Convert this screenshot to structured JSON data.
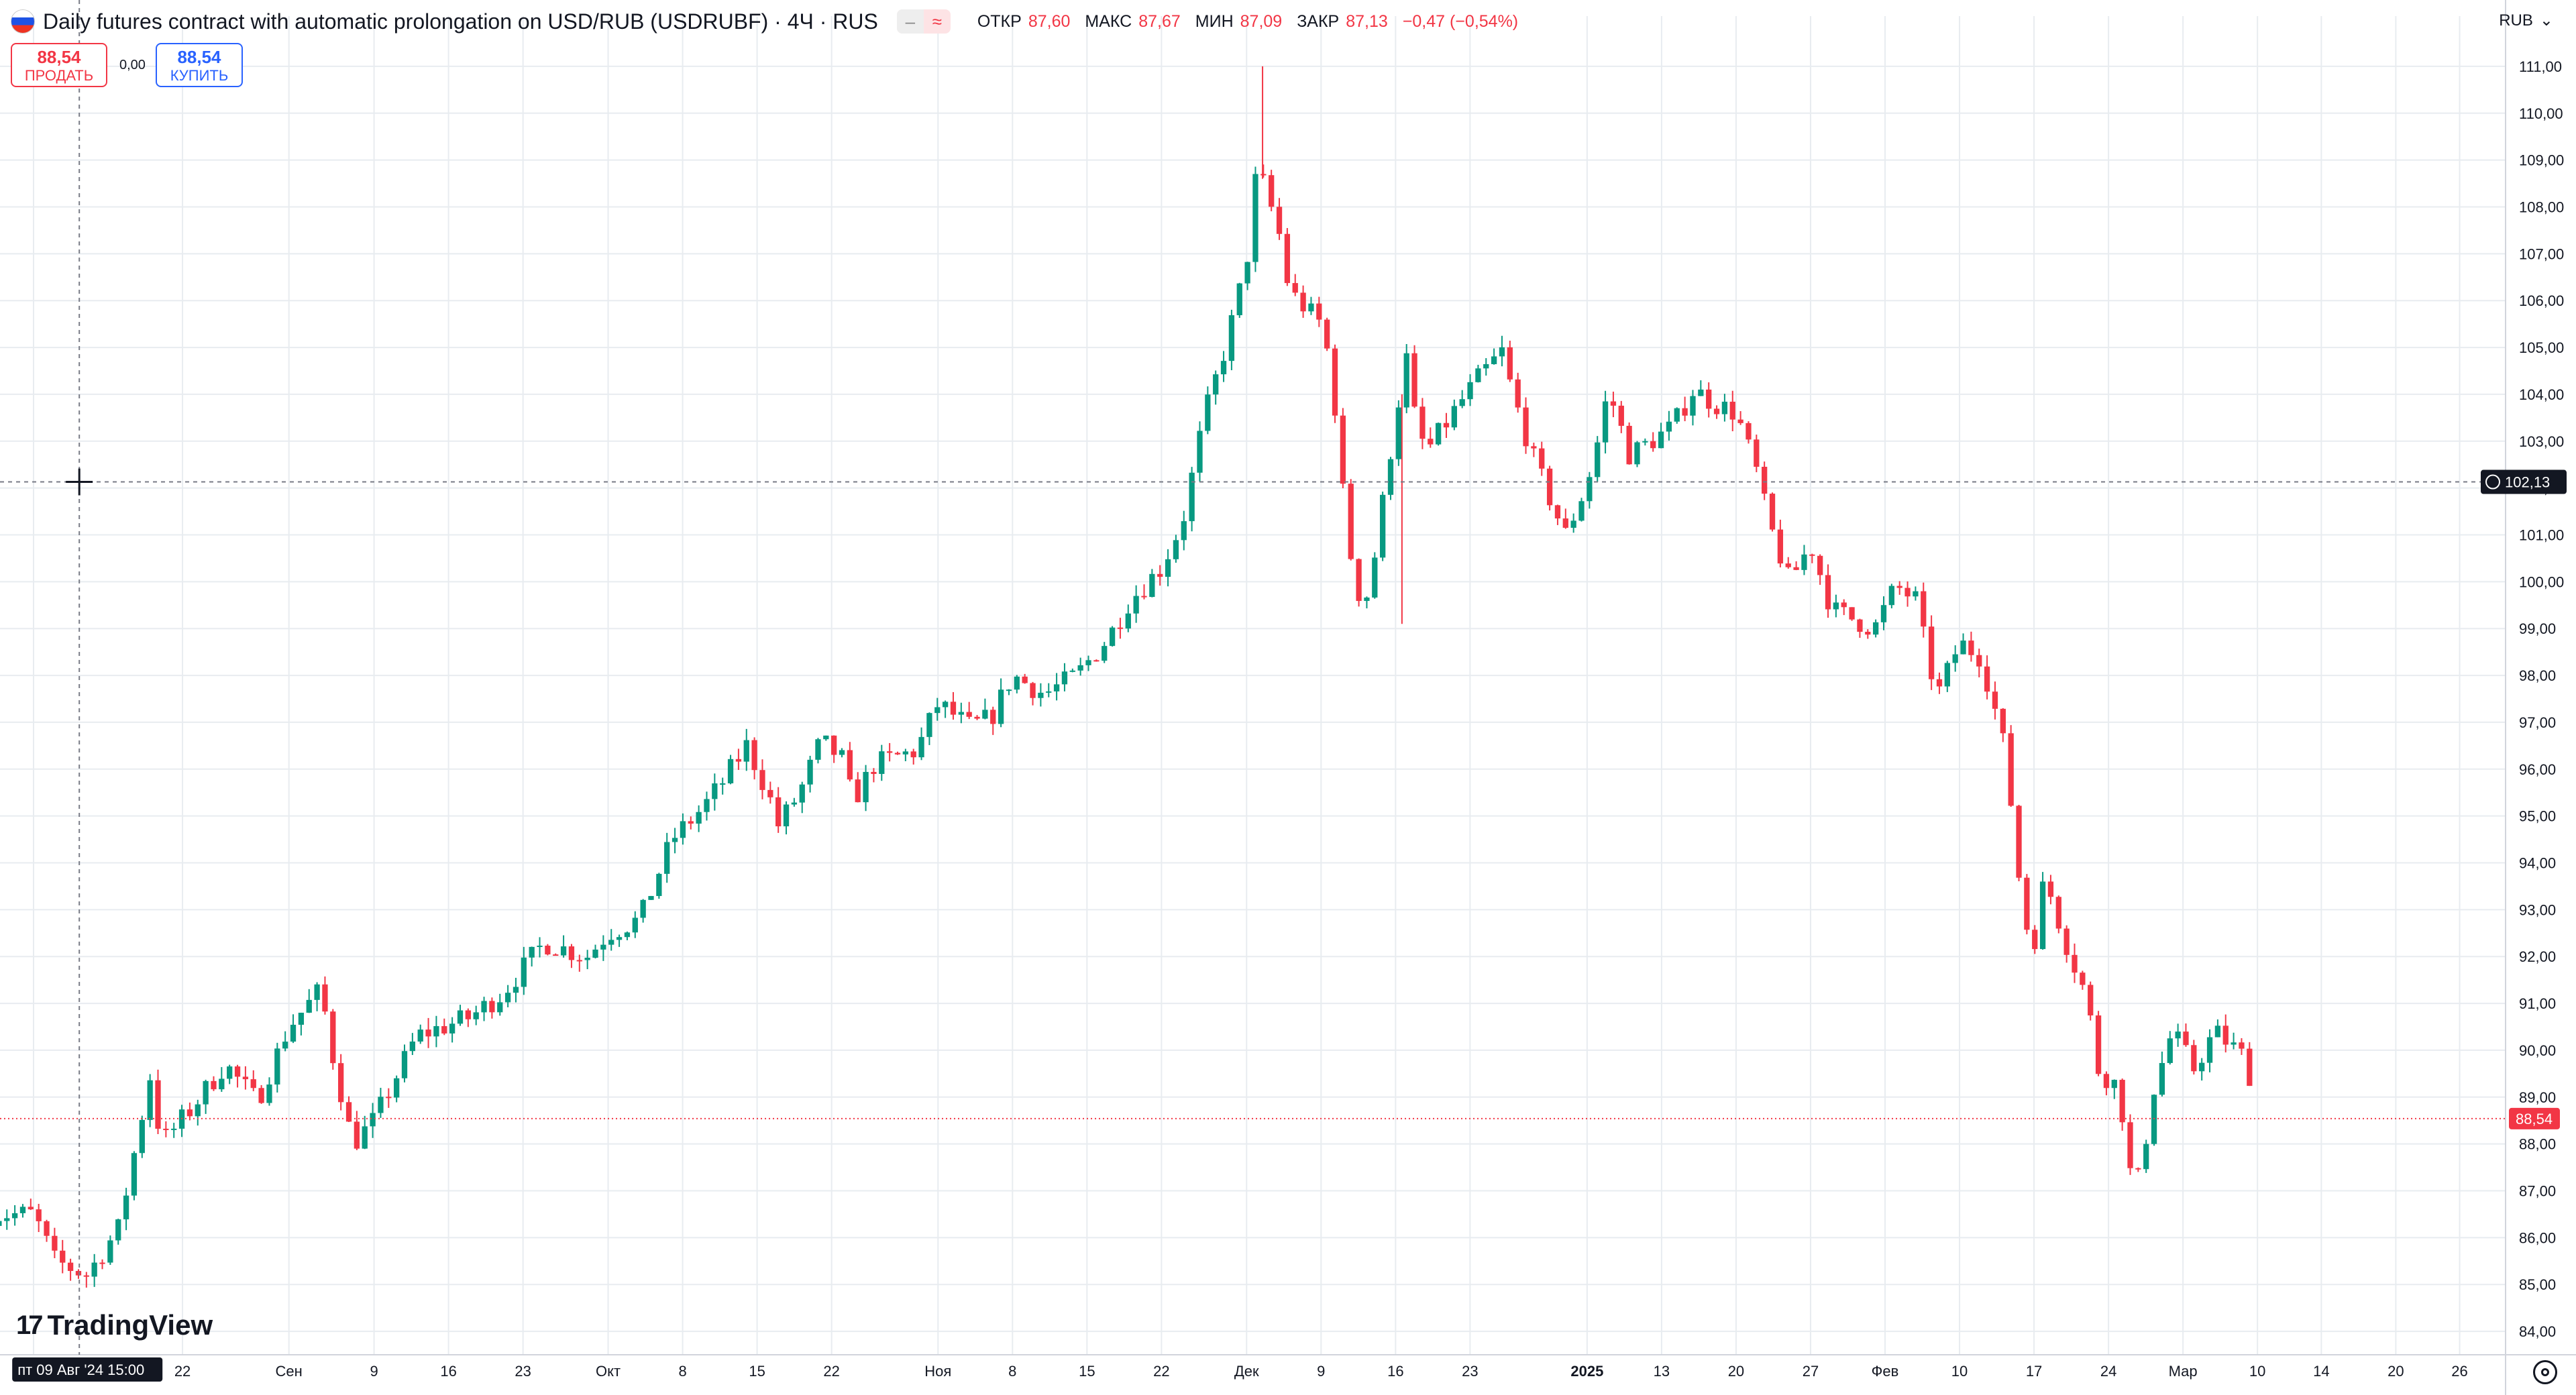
{
  "header": {
    "title": "Daily futures contract with automatic prolongation on USD/RUB (USDRUBF) · 4Ч · RUS",
    "ohlc": [
      {
        "key": "ОТКР",
        "value": "87,60"
      },
      {
        "key": "МАКС",
        "value": "87,67"
      },
      {
        "key": "МИН",
        "value": "87,09"
      },
      {
        "key": "ЗАКР",
        "value": "87,13"
      },
      {
        "key": "",
        "value": "−0,47 (−0,54%)"
      }
    ],
    "toggle_a": "–",
    "toggle_b": "≈"
  },
  "trade": {
    "sell_price": "88,54",
    "sell_label": "ПРОДАТЬ",
    "spread": "0,00",
    "buy_price": "88,54",
    "buy_label": "КУПИТЬ"
  },
  "currency_button": "RUB",
  "crosshair": {
    "price_label": "102,13",
    "time_label": "пт 09 Авг '24   15:00"
  },
  "last_price_label": "88,54",
  "logo": "TradingView",
  "colors": {
    "up": "#089981",
    "down": "#f23645",
    "grid": "#e8ecf0",
    "accent": "#2962ff"
  },
  "chart_data": {
    "type": "candlestick",
    "title": "Daily futures contract with automatic prolongation on USD/RUB (USDRUBF)",
    "timeframe": "4H",
    "price_ticks": [
      "84,00",
      "85,00",
      "86,00",
      "87,00",
      "88,00",
      "89,00",
      "90,00",
      "91,00",
      "92,00",
      "93,00",
      "94,00",
      "95,00",
      "96,00",
      "97,00",
      "98,00",
      "99,00",
      "100,00",
      "101,00",
      "102,00",
      "103,00",
      "104,00",
      "105,00",
      "106,00",
      "107,00",
      "108,00",
      "109,00",
      "110,00",
      "111,00"
    ],
    "ylim": [
      83.5,
      111.5
    ],
    "time_ticks": [
      {
        "d": 0,
        "label": "Авг"
      },
      {
        "d": 14,
        "label": "22"
      },
      {
        "d": 24,
        "label": "Сен"
      },
      {
        "d": 32,
        "label": "9"
      },
      {
        "d": 39,
        "label": "16"
      },
      {
        "d": 46,
        "label": "23"
      },
      {
        "d": 54,
        "label": "Окт"
      },
      {
        "d": 61,
        "label": "8"
      },
      {
        "d": 68,
        "label": "15"
      },
      {
        "d": 75,
        "label": "22"
      },
      {
        "d": 85,
        "label": "Ноя"
      },
      {
        "d": 92,
        "label": "8"
      },
      {
        "d": 99,
        "label": "15"
      },
      {
        "d": 106,
        "label": "22"
      },
      {
        "d": 114,
        "label": "Дек"
      },
      {
        "d": 121,
        "label": "9"
      },
      {
        "d": 128,
        "label": "16"
      },
      {
        "d": 135,
        "label": "23"
      },
      {
        "d": 146,
        "label": "2025"
      },
      {
        "d": 153,
        "label": "13"
      },
      {
        "d": 160,
        "label": "20"
      },
      {
        "d": 167,
        "label": "27"
      },
      {
        "d": 174,
        "label": "Фев"
      },
      {
        "d": 181,
        "label": "10"
      },
      {
        "d": 188,
        "label": "17"
      },
      {
        "d": 195,
        "label": "24"
      },
      {
        "d": 202,
        "label": "Мар"
      },
      {
        "d": 209,
        "label": "10"
      },
      {
        "d": 215,
        "label": "14"
      },
      {
        "d": 222,
        "label": "20"
      },
      {
        "d": 228,
        "label": "26"
      }
    ],
    "trend": [
      [
        0,
        86.5
      ],
      [
        2,
        85.5
      ],
      [
        5,
        85.2
      ],
      [
        8,
        86.2
      ],
      [
        11,
        89.5
      ],
      [
        12,
        88.0
      ],
      [
        15,
        88.8
      ],
      [
        18,
        89.7
      ],
      [
        21,
        88.9
      ],
      [
        24,
        90.5
      ],
      [
        27,
        91.3
      ],
      [
        28,
        90.0
      ],
      [
        30,
        88.0
      ],
      [
        32,
        88.5
      ],
      [
        36,
        90.3
      ],
      [
        41,
        90.7
      ],
      [
        44,
        91.2
      ],
      [
        48,
        92.3
      ],
      [
        52,
        92.0
      ],
      [
        54,
        92.5
      ],
      [
        57,
        92.8
      ],
      [
        60,
        94.5
      ],
      [
        63,
        95.2
      ],
      [
        65,
        95.8
      ],
      [
        67,
        96.5
      ],
      [
        69,
        95.5
      ],
      [
        70,
        94.8
      ],
      [
        72,
        95.5
      ],
      [
        74,
        96.6
      ],
      [
        76,
        96.2
      ],
      [
        77,
        95.3
      ],
      [
        79,
        96.1
      ],
      [
        83,
        96.4
      ],
      [
        85,
        97.4
      ],
      [
        88,
        96.9
      ],
      [
        90,
        97.1
      ],
      [
        92,
        98.0
      ],
      [
        95,
        97.6
      ],
      [
        98,
        98.0
      ],
      [
        101,
        98.8
      ],
      [
        103,
        99.6
      ],
      [
        106,
        100.3
      ],
      [
        108,
        101.3
      ],
      [
        110,
        103.5
      ],
      [
        112,
        105.0
      ],
      [
        114,
        106.8
      ],
      [
        115,
        108.9
      ],
      [
        117,
        107.5
      ],
      [
        118,
        106.2
      ],
      [
        121,
        105.5
      ],
      [
        122,
        104.5
      ],
      [
        123,
        102.0
      ],
      [
        124,
        100.2
      ],
      [
        125,
        99.4
      ],
      [
        126,
        100.5
      ],
      [
        128,
        103.5
      ],
      [
        129,
        104.8
      ],
      [
        130,
        103.2
      ],
      [
        131,
        102.8
      ],
      [
        134,
        103.8
      ],
      [
        136,
        104.4
      ],
      [
        138,
        104.9
      ],
      [
        139,
        104.0
      ],
      [
        141,
        102.6
      ],
      [
        143,
        101.5
      ],
      [
        144,
        101.0
      ],
      [
        146,
        102.1
      ],
      [
        147,
        103.0
      ],
      [
        148,
        104.1
      ],
      [
        150,
        102.7
      ],
      [
        152,
        103.0
      ],
      [
        154,
        103.3
      ],
      [
        156,
        104.1
      ],
      [
        158,
        103.8
      ],
      [
        160,
        103.6
      ],
      [
        162,
        102.3
      ],
      [
        163,
        101.3
      ],
      [
        165,
        100.0
      ],
      [
        167,
        100.8
      ],
      [
        169,
        99.4
      ],
      [
        171,
        99.2
      ],
      [
        173,
        99.0
      ],
      [
        175,
        99.9
      ],
      [
        177,
        99.6
      ],
      [
        178,
        98.3
      ],
      [
        179,
        97.6
      ],
      [
        181,
        98.7
      ],
      [
        183,
        98.4
      ],
      [
        185,
        96.7
      ],
      [
        186,
        95.0
      ],
      [
        187,
        92.8
      ],
      [
        188,
        92.3
      ],
      [
        189,
        93.7
      ],
      [
        191,
        92.3
      ],
      [
        193,
        91.1
      ],
      [
        194,
        89.6
      ],
      [
        196,
        89.2
      ],
      [
        197,
        87.4
      ],
      [
        198,
        87.2
      ],
      [
        199,
        89.0
      ],
      [
        201,
        90.4
      ],
      [
        203,
        89.6
      ],
      [
        205,
        90.4
      ],
      [
        207,
        90.0
      ],
      [
        208,
        89.8
      ],
      [
        209,
        88.54
      ]
    ],
    "last_price": 88.54,
    "crosshair_price": 102.13,
    "candle_count": 285,
    "series_high": 111.0,
    "series_low": 84.8
  }
}
